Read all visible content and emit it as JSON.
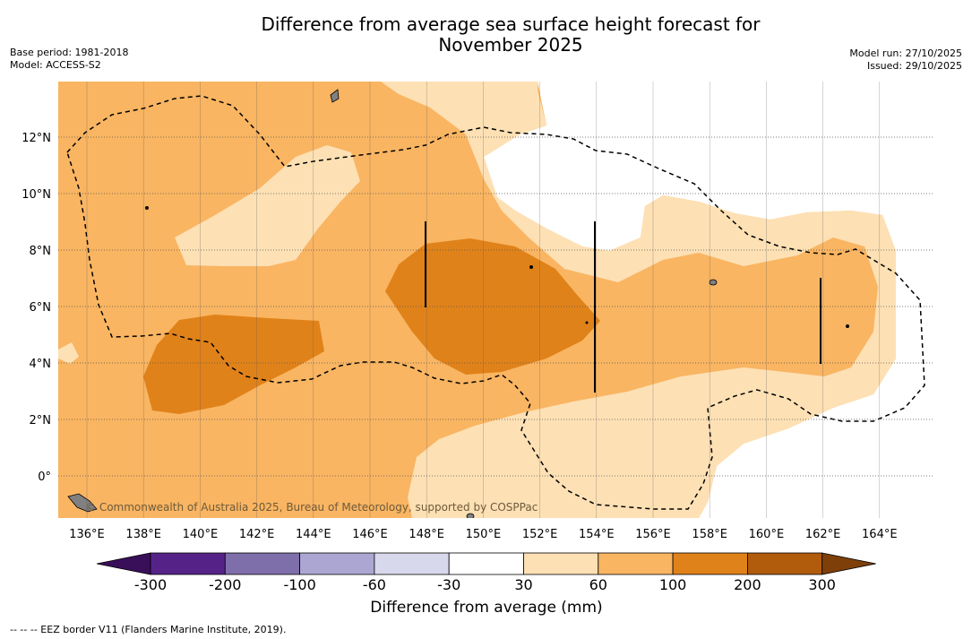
{
  "title": {
    "line1": "Difference from average sea surface height forecast for",
    "line2": "November 2025"
  },
  "meta_left": {
    "base_period": "Base period: 1981-2018",
    "model": "Model: ACCESS-S2"
  },
  "meta_right": {
    "model_run": "Model run: 27/10/2025",
    "issued": "Issued: 29/10/2025"
  },
  "map": {
    "lon_ticks": [
      "136°E",
      "138°E",
      "140°E",
      "142°E",
      "144°E",
      "146°E",
      "148°E",
      "150°E",
      "152°E",
      "154°E",
      "156°E",
      "158°E",
      "160°E",
      "162°E",
      "164°E"
    ],
    "lat_ticks": [
      "12°N",
      "10°N",
      "8°N",
      "6°N",
      "4°N",
      "2°N",
      "0°"
    ],
    "watermark": "© Commonwealth of Australia 2025, Bureau of Meteorology, supported by COSPPac",
    "colors": {
      "c30_60": "#fde0b4",
      "c60_100": "#f9b562",
      "c100_200": "#e0821a",
      "c200_300": "#b15c0c",
      "land": "#808080"
    }
  },
  "colorbar": {
    "labels": [
      "-300",
      "-200",
      "-100",
      "-60",
      "-30",
      "30",
      "60",
      "100",
      "200",
      "300"
    ],
    "colors": [
      "#3a0f5a",
      "#552388",
      "#7e6fab",
      "#aca6d2",
      "#d7d8eb",
      "#ffffff",
      "#fde0b4",
      "#f9b562",
      "#e0821a",
      "#b15c0c",
      "#7e3f08"
    ],
    "title": "Difference from average (mm)"
  },
  "footer": "--  --  -- EEZ border V11 (Flanders Marine Institute, 2019)."
}
